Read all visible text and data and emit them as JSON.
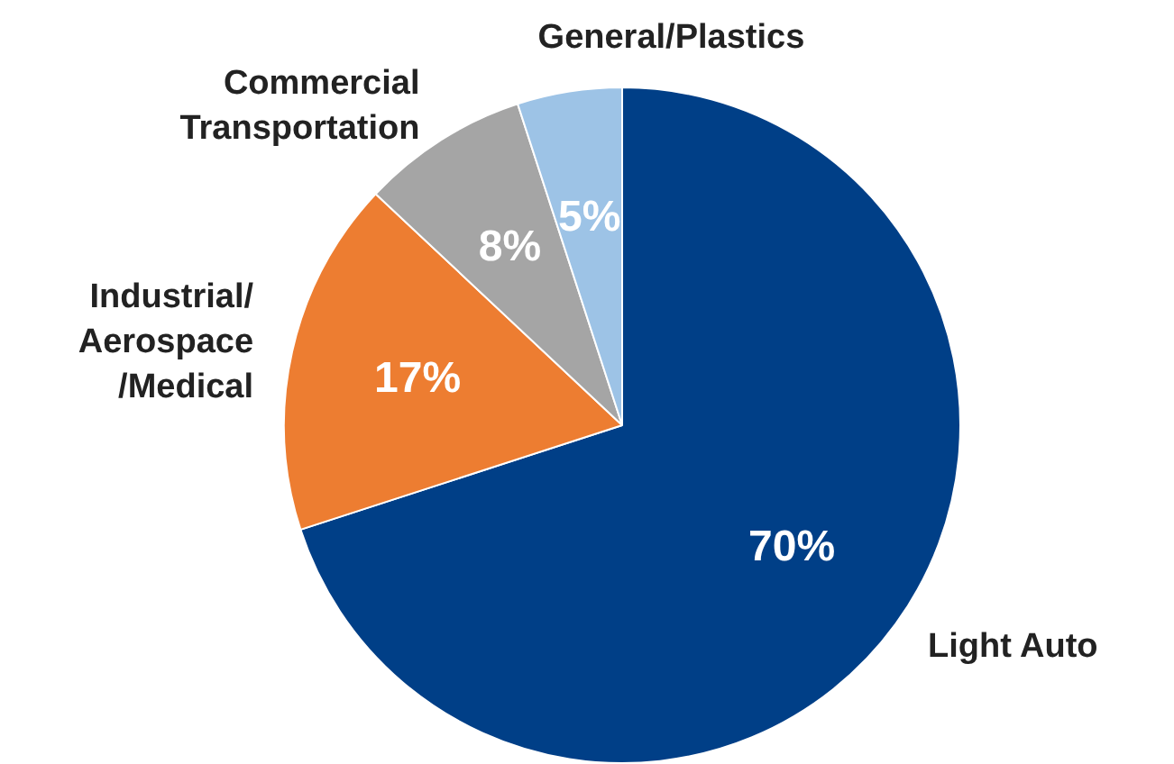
{
  "chart_data": {
    "type": "pie",
    "categories": [
      "Light Auto",
      "Industrial/\nAerospace\n/Medical",
      "Commercial\nTransportation",
      "General/Plastics"
    ],
    "values": [
      70,
      17,
      8,
      5
    ],
    "colors": [
      "#003f87",
      "#ed7d31",
      "#a5a5a5",
      "#9dc3e6"
    ],
    "value_labels": [
      "70%",
      "17%",
      "8%",
      "5%"
    ],
    "legend": false
  }
}
